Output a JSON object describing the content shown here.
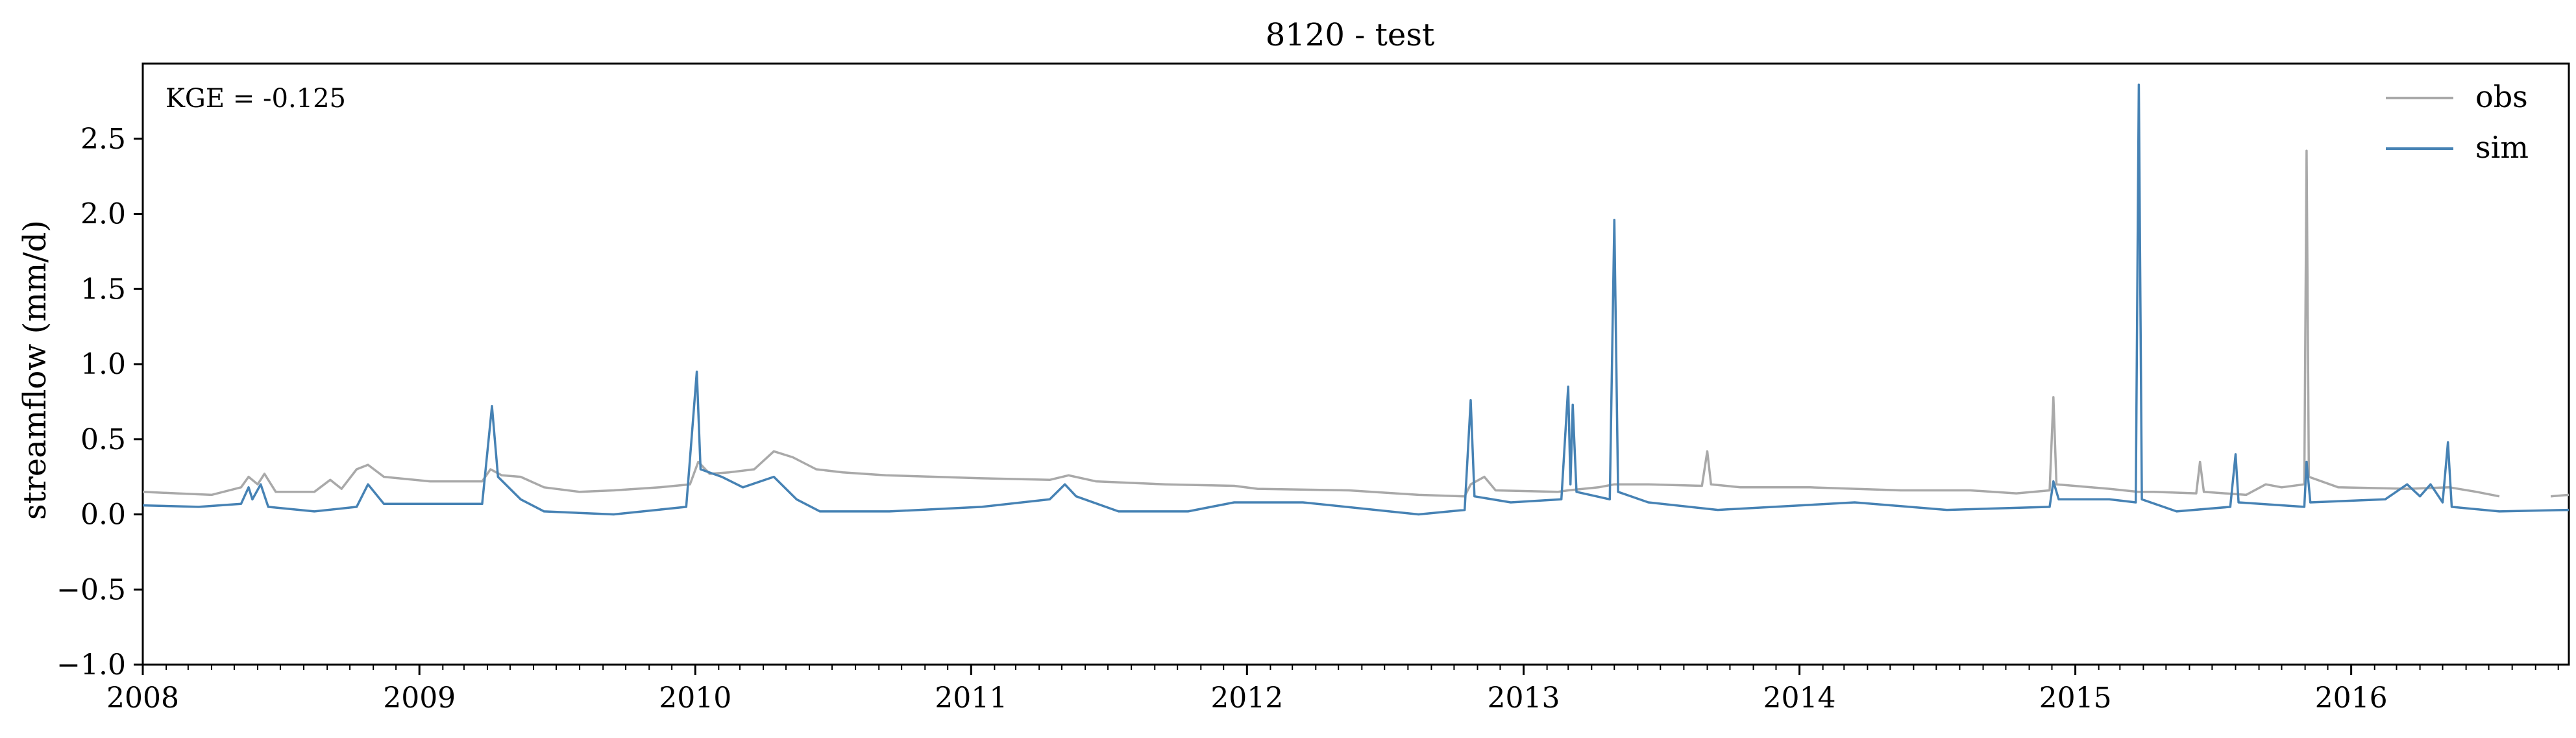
{
  "chart_data": {
    "type": "line",
    "title": "8120 - test",
    "xlabel": "",
    "ylabel": "streamflow (mm/d)",
    "ylim": [
      -1.0,
      3.0
    ],
    "xlim": [
      "2008-01-01",
      "2016-10-15"
    ],
    "x_ticks": [
      "2008",
      "2009",
      "2010",
      "2011",
      "2012",
      "2013",
      "2014",
      "2015",
      "2016"
    ],
    "y_ticks": [
      "−1.0",
      "−0.5",
      "0.0",
      "0.5",
      "1.0",
      "1.5",
      "2.0",
      "2.5"
    ],
    "y_tick_values": [
      -1.0,
      -0.5,
      0.0,
      0.5,
      1.0,
      1.5,
      2.0,
      2.5
    ],
    "grid": false,
    "legend_position": "top-right",
    "annotation": "KGE = -0.125",
    "series": [
      {
        "name": "obs",
        "color": "#a9a9a9",
        "points": [
          [
            "2008-01-01",
            0.15
          ],
          [
            "2008-02-15",
            0.14
          ],
          [
            "2008-04-01",
            0.13
          ],
          [
            "2008-05-10",
            0.18
          ],
          [
            "2008-05-20",
            0.25
          ],
          [
            "2008-06-01",
            0.2
          ],
          [
            "2008-06-10",
            0.27
          ],
          [
            "2008-06-25",
            0.15
          ],
          [
            "2008-08-15",
            0.15
          ],
          [
            "2008-09-05",
            0.23
          ],
          [
            "2008-09-20",
            0.17
          ],
          [
            "2008-10-10",
            0.3
          ],
          [
            "2008-10-25",
            0.33
          ],
          [
            "2008-11-15",
            0.25
          ],
          [
            "2009-01-15",
            0.22
          ],
          [
            "2009-03-25",
            0.22
          ],
          [
            "2009-04-05",
            0.3
          ],
          [
            "2009-04-20",
            0.26
          ],
          [
            "2009-05-15",
            0.25
          ],
          [
            "2009-06-15",
            0.18
          ],
          [
            "2009-08-01",
            0.15
          ],
          [
            "2009-09-15",
            0.16
          ],
          [
            "2009-11-15",
            0.18
          ],
          [
            "2009-12-25",
            0.2
          ],
          [
            "2010-01-05",
            0.35
          ],
          [
            "2010-01-20",
            0.27
          ],
          [
            "2010-02-15",
            0.28
          ],
          [
            "2010-03-20",
            0.3
          ],
          [
            "2010-04-15",
            0.42
          ],
          [
            "2010-05-10",
            0.38
          ],
          [
            "2010-06-10",
            0.3
          ],
          [
            "2010-07-15",
            0.28
          ],
          [
            "2010-09-10",
            0.26
          ],
          [
            "2010-11-15",
            0.25
          ],
          [
            "2011-01-15",
            0.24
          ],
          [
            "2011-04-15",
            0.23
          ],
          [
            "2011-05-10",
            0.26
          ],
          [
            "2011-06-15",
            0.22
          ],
          [
            "2011-09-15",
            0.2
          ],
          [
            "2011-12-15",
            0.19
          ],
          [
            "2012-01-15",
            0.17
          ],
          [
            "2012-05-15",
            0.16
          ],
          [
            "2012-08-15",
            0.13
          ],
          [
            "2012-10-15",
            0.12
          ],
          [
            "2012-10-23",
            0.2
          ],
          [
            "2012-11-10",
            0.25
          ],
          [
            "2012-11-25",
            0.16
          ],
          [
            "2013-02-15",
            0.15
          ],
          [
            "2013-03-01",
            0.16
          ],
          [
            "2013-04-10",
            0.18
          ],
          [
            "2013-05-01",
            0.2
          ],
          [
            "2013-06-15",
            0.2
          ],
          [
            "2013-08-25",
            0.19
          ],
          [
            "2013-09-01",
            0.42
          ],
          [
            "2013-09-06",
            0.2
          ],
          [
            "2013-10-15",
            0.18
          ],
          [
            "2014-01-15",
            0.18
          ],
          [
            "2014-05-15",
            0.16
          ],
          [
            "2014-08-15",
            0.16
          ],
          [
            "2014-10-15",
            0.14
          ],
          [
            "2014-11-28",
            0.16
          ],
          [
            "2014-12-03",
            0.78
          ],
          [
            "2014-12-07",
            0.2
          ],
          [
            "2015-02-15",
            0.17
          ],
          [
            "2015-03-25",
            0.15
          ],
          [
            "2015-04-15",
            0.15
          ],
          [
            "2015-06-10",
            0.14
          ],
          [
            "2015-06-15",
            0.35
          ],
          [
            "2015-06-20",
            0.15
          ],
          [
            "2015-08-15",
            0.13
          ],
          [
            "2015-09-10",
            0.2
          ],
          [
            "2015-10-01",
            0.18
          ],
          [
            "2015-10-31",
            0.2
          ],
          [
            "2015-11-03",
            2.42
          ],
          [
            "2015-11-06",
            0.25
          ],
          [
            "2015-12-15",
            0.18
          ],
          [
            "2016-03-15",
            0.17
          ],
          [
            "2016-05-10",
            0.18
          ],
          [
            "2016-06-15",
            0.15
          ],
          [
            "2016-07-15",
            0.12
          ],
          [
            "2016-07-16",
            null
          ],
          [
            "2016-09-20",
            null
          ],
          [
            "2016-09-21",
            0.12
          ],
          [
            "2016-10-15",
            0.13
          ]
        ]
      },
      {
        "name": "sim",
        "color": "#4682b4",
        "points": [
          [
            "2008-01-01",
            0.06
          ],
          [
            "2008-03-15",
            0.05
          ],
          [
            "2008-05-10",
            0.07
          ],
          [
            "2008-05-20",
            0.18
          ],
          [
            "2008-05-25",
            0.1
          ],
          [
            "2008-06-05",
            0.2
          ],
          [
            "2008-06-15",
            0.05
          ],
          [
            "2008-08-15",
            0.02
          ],
          [
            "2008-10-10",
            0.05
          ],
          [
            "2008-10-25",
            0.2
          ],
          [
            "2008-11-15",
            0.07
          ],
          [
            "2009-03-25",
            0.07
          ],
          [
            "2009-04-07",
            0.72
          ],
          [
            "2009-04-15",
            0.25
          ],
          [
            "2009-05-15",
            0.1
          ],
          [
            "2009-06-15",
            0.02
          ],
          [
            "2009-09-15",
            0.0
          ],
          [
            "2009-12-20",
            0.05
          ],
          [
            "2010-01-03",
            0.95
          ],
          [
            "2010-01-08",
            0.3
          ],
          [
            "2010-02-05",
            0.25
          ],
          [
            "2010-03-05",
            0.18
          ],
          [
            "2010-04-15",
            0.25
          ],
          [
            "2010-05-15",
            0.1
          ],
          [
            "2010-06-15",
            0.02
          ],
          [
            "2010-09-15",
            0.02
          ],
          [
            "2011-01-15",
            0.05
          ],
          [
            "2011-04-15",
            0.1
          ],
          [
            "2011-05-05",
            0.2
          ],
          [
            "2011-05-20",
            0.12
          ],
          [
            "2011-07-15",
            0.02
          ],
          [
            "2011-10-15",
            0.02
          ],
          [
            "2011-12-15",
            0.08
          ],
          [
            "2012-03-15",
            0.08
          ],
          [
            "2012-08-15",
            0.0
          ],
          [
            "2012-10-15",
            0.03
          ],
          [
            "2012-10-23",
            0.76
          ],
          [
            "2012-10-28",
            0.12
          ],
          [
            "2012-12-15",
            0.08
          ],
          [
            "2013-02-20",
            0.1
          ],
          [
            "2013-03-01",
            0.85
          ],
          [
            "2013-03-04",
            0.2
          ],
          [
            "2013-03-07",
            0.73
          ],
          [
            "2013-03-12",
            0.15
          ],
          [
            "2013-04-25",
            0.1
          ],
          [
            "2013-05-01",
            1.96
          ],
          [
            "2013-05-06",
            0.15
          ],
          [
            "2013-06-15",
            0.08
          ],
          [
            "2013-09-15",
            0.03
          ],
          [
            "2014-03-15",
            0.08
          ],
          [
            "2014-07-15",
            0.03
          ],
          [
            "2014-11-28",
            0.05
          ],
          [
            "2014-12-03",
            0.22
          ],
          [
            "2014-12-10",
            0.1
          ],
          [
            "2015-02-15",
            0.1
          ],
          [
            "2015-03-22",
            0.08
          ],
          [
            "2015-03-26",
            2.86
          ],
          [
            "2015-03-30",
            0.1
          ],
          [
            "2015-05-15",
            0.02
          ],
          [
            "2015-07-25",
            0.05
          ],
          [
            "2015-08-01",
            0.4
          ],
          [
            "2015-08-05",
            0.08
          ],
          [
            "2015-10-31",
            0.05
          ],
          [
            "2015-11-03",
            0.35
          ],
          [
            "2015-11-08",
            0.08
          ],
          [
            "2016-02-15",
            0.1
          ],
          [
            "2016-03-15",
            0.2
          ],
          [
            "2016-04-01",
            0.12
          ],
          [
            "2016-04-15",
            0.2
          ],
          [
            "2016-05-01",
            0.08
          ],
          [
            "2016-05-08",
            0.48
          ],
          [
            "2016-05-13",
            0.05
          ],
          [
            "2016-07-15",
            0.02
          ],
          [
            "2016-10-15",
            0.03
          ]
        ]
      }
    ]
  }
}
